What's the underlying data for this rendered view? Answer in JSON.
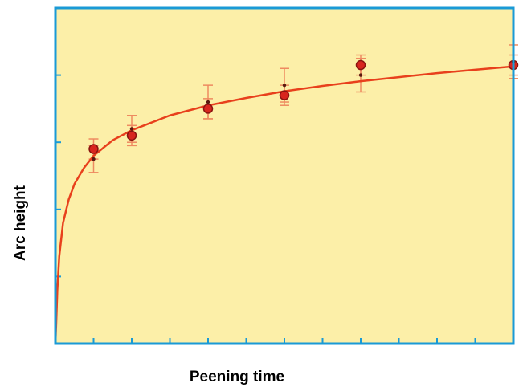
{
  "chart_data": {
    "type": "scatter",
    "title": "",
    "xlabel": "Peening time",
    "ylabel": "Arc height",
    "xlim": [
      0,
      12
    ],
    "ylim": [
      0,
      5
    ],
    "x_ticks_count": 12,
    "y_ticks_count": 5,
    "tick_labels_shown": false,
    "grid": false,
    "legend": "none",
    "series": [
      {
        "type": "scatter_with_error",
        "x": [
          1,
          2,
          4,
          6,
          8,
          12
        ],
        "y": [
          2.9,
          3.1,
          3.5,
          3.7,
          4.15,
          4.15
        ],
        "err": [
          0.15,
          0.15,
          0.15,
          0.15,
          0.15,
          0.15
        ]
      },
      {
        "type": "scatter_with_error",
        "x": [
          1,
          2,
          4,
          6,
          8,
          12
        ],
        "y": [
          2.75,
          3.2,
          3.6,
          3.85,
          4.0,
          4.2
        ],
        "err": [
          0.2,
          0.2,
          0.25,
          0.25,
          0.25,
          0.25
        ]
      }
    ],
    "fit_curve": {
      "type": "line",
      "x": [
        0.02,
        0.05,
        0.1,
        0.2,
        0.35,
        0.5,
        0.75,
        1,
        1.5,
        2,
        3,
        4,
        5,
        6,
        7,
        8,
        9,
        10,
        11,
        12
      ],
      "y": [
        0.3,
        0.8,
        1.3,
        1.8,
        2.15,
        2.38,
        2.62,
        2.8,
        3.03,
        3.18,
        3.4,
        3.55,
        3.66,
        3.76,
        3.84,
        3.91,
        3.97,
        4.03,
        4.08,
        4.13
      ]
    },
    "colors": {
      "plot_background": "#fcefa8",
      "frame": "#1a9ad6",
      "curve": "#e8401c",
      "marker_fill": "#d8261e",
      "marker_edge": "#8a1410",
      "error_bar": "#ee8a60"
    }
  }
}
